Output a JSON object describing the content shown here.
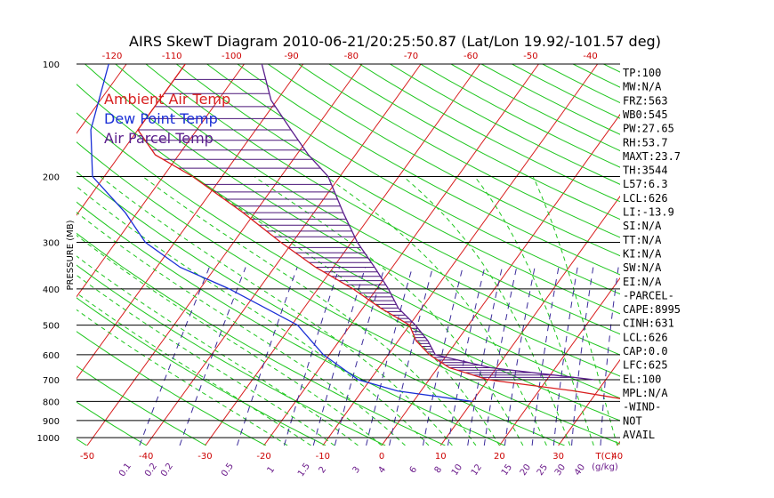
{
  "chart_data": {
    "type": "line",
    "title": "AIRS SkewT Diagram 2010-06-21/20:25:50.87 (Lat/Lon 19.92/-101.57 deg)",
    "ylabel": "PRESSURE (MB)",
    "y_scale": "log",
    "ylim": [
      1050,
      100
    ],
    "y_ticks": [
      100,
      200,
      300,
      400,
      500,
      600,
      700,
      800,
      900,
      1000
    ],
    "x_bottom_ticks": [
      -50,
      -40,
      -30,
      -20,
      -10,
      0,
      10,
      20,
      30,
      40
    ],
    "x_bottom_unit": "T(C)",
    "x_top_ticks": [
      -120,
      -110,
      -100,
      -90,
      -80,
      -70,
      -60,
      -50,
      -40
    ],
    "mixing_ratio_labels": [
      "0.1",
      "0.2",
      "0.2",
      "0.5",
      "1",
      "1.5",
      "2",
      "3",
      "4",
      "6",
      "8",
      "10",
      "12",
      "15",
      "20",
      "25",
      "30",
      "40"
    ],
    "mixing_ratio_unit": "(g/kg)",
    "legend": [
      {
        "label": "Ambient Air Temp",
        "color": "#d81e1e"
      },
      {
        "label": "Dew Point Temp",
        "color": "#1a2fd6"
      },
      {
        "label": "Air Parcel Temp",
        "color": "#5a1d8c"
      }
    ],
    "series": [
      {
        "name": "Ambient Air Temp",
        "points": [
          [
            100,
            -80
          ],
          [
            125,
            -80
          ],
          [
            150,
            -80
          ],
          [
            175,
            -74
          ],
          [
            200,
            -65
          ],
          [
            250,
            -52
          ],
          [
            300,
            -42
          ],
          [
            350,
            -33
          ],
          [
            400,
            -24
          ],
          [
            450,
            -17
          ],
          [
            500,
            -10
          ],
          [
            550,
            -7
          ],
          [
            600,
            -3
          ],
          [
            650,
            2
          ],
          [
            700,
            10
          ],
          [
            750,
            26
          ],
          [
            800,
            38
          ]
        ]
      },
      {
        "name": "Dew Point Temp",
        "points": [
          [
            100,
            -93
          ],
          [
            150,
            -88
          ],
          [
            200,
            -82
          ],
          [
            250,
            -72
          ],
          [
            300,
            -65
          ],
          [
            350,
            -56
          ],
          [
            400,
            -45
          ],
          [
            500,
            -29
          ],
          [
            600,
            -21
          ],
          [
            700,
            -12
          ],
          [
            750,
            -4
          ],
          [
            800,
            10
          ]
        ]
      },
      {
        "name": "Air Parcel Temp",
        "points": [
          [
            100,
            -67
          ],
          [
            125,
            -61
          ],
          [
            150,
            -54
          ],
          [
            175,
            -48
          ],
          [
            200,
            -42
          ],
          [
            250,
            -35
          ],
          [
            300,
            -29
          ],
          [
            350,
            -23
          ],
          [
            400,
            -18
          ],
          [
            450,
            -14
          ],
          [
            500,
            -9
          ],
          [
            550,
            -5
          ],
          [
            600,
            -2
          ],
          [
            650,
            9
          ],
          [
            700,
            28
          ]
        ]
      }
    ],
    "indices": [
      "TP:100",
      "MW:N/A",
      "FRZ:563",
      "WB0:545",
      "PW:27.65",
      "RH:53.7",
      "MAXT:23.7",
      "TH:3544",
      "L57:6.3",
      "LCL:626",
      "LI:-13.9",
      "SI:N/A",
      "TT:N/A",
      "KI:N/A",
      "SW:N/A",
      "EI:N/A",
      "-PARCEL-",
      "CAPE:8995",
      "CINH:631",
      "LCL:626",
      "CAP:0.0",
      "LFC:625",
      "EL:100",
      "MPL:N/A",
      "-WIND-",
      "NOT",
      "AVAIL"
    ],
    "colors": {
      "isotherm": "#d81e1e",
      "dry_adiabat": "#1ec61e",
      "moist_adiabat": "#1ec61e",
      "mixing_ratio": "#3a2a9a",
      "cape_hatch": "#4a1578"
    }
  }
}
